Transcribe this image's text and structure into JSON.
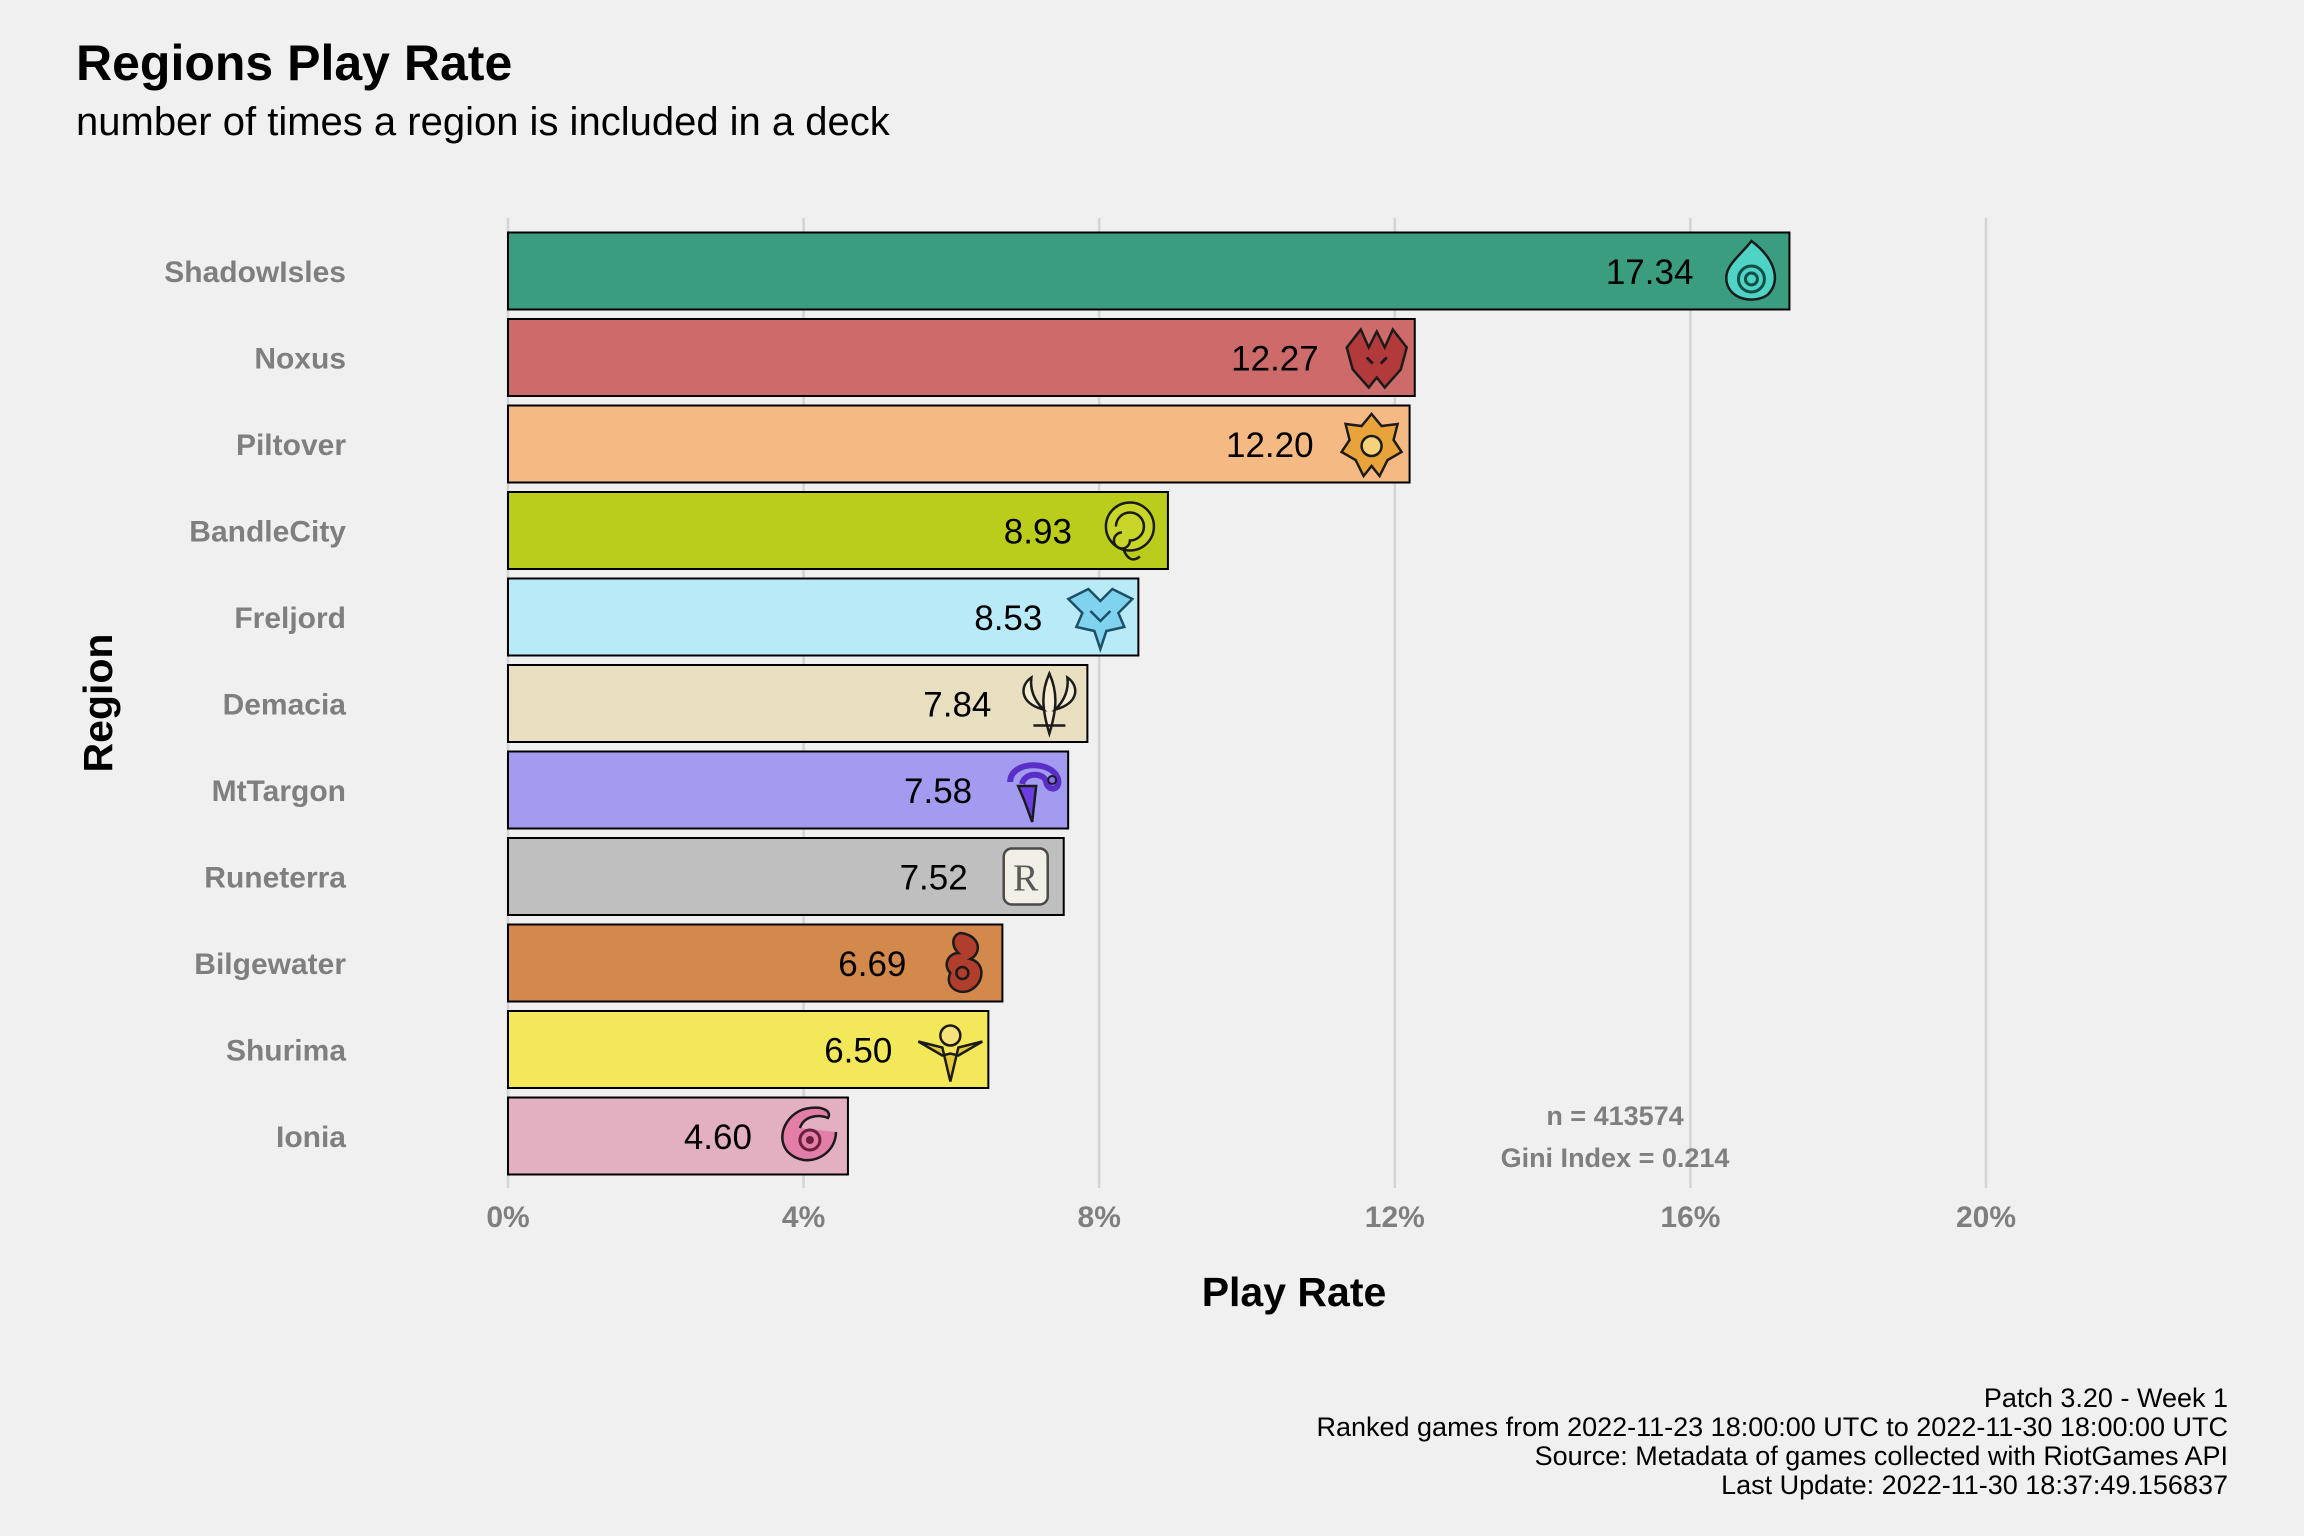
{
  "title": "Regions Play Rate",
  "subtitle": "number of times a region is included in a deck",
  "chart_data": {
    "type": "bar",
    "orientation": "horizontal",
    "xlabel": "Play Rate",
    "ylabel": "Region",
    "xlim": [
      0,
      20
    ],
    "x_ticks": [
      0,
      4,
      8,
      12,
      16,
      20
    ],
    "x_tick_labels": [
      "0%",
      "4%",
      "8%",
      "12%",
      "16%",
      "20%"
    ],
    "grid": "vertical major gridlines",
    "categories": [
      "ShadowIsles",
      "Noxus",
      "Piltover",
      "BandleCity",
      "Freljord",
      "Demacia",
      "MtTargon",
      "Runeterra",
      "Bilgewater",
      "Shurima",
      "Ionia"
    ],
    "values": [
      17.34,
      12.27,
      12.2,
      8.93,
      8.53,
      7.84,
      7.58,
      7.52,
      6.69,
      6.5,
      4.6
    ],
    "value_labels": [
      "17.34",
      "12.27",
      "12.20",
      "8.93",
      "8.53",
      "7.84",
      "7.58",
      "7.52",
      "6.69",
      "6.50",
      "4.60"
    ],
    "colors": [
      "#3a9d7f",
      "#cd6b6b",
      "#f5b983",
      "#bacd1a",
      "#b8eaf7",
      "#e8dfc1",
      "#a29bef",
      "#bfbfbf",
      "#d3884c",
      "#f3e85a",
      "#e2b0c1"
    ],
    "icons": [
      "shadowisles-icon",
      "noxus-icon",
      "piltover-icon",
      "bandlecity-icon",
      "freljord-icon",
      "demacia-icon",
      "mttargon-icon",
      "runeterra-icon",
      "bilgewater-icon",
      "shurima-icon",
      "ionia-icon"
    ],
    "annotations": [
      "n = 413574",
      "Gini Index = 0.214"
    ]
  },
  "caption": {
    "line1": "Patch 3.20 - Week 1",
    "line2": "Ranked games from 2022-11-23 18:00:00 UTC to 2022-11-30 18:00:00 UTC",
    "line3": "Source: Metadata of games collected with RiotGames API",
    "line4": "Last Update: 2022-11-30 18:37:49.156837"
  },
  "colors": {
    "background": "#f0f0f0",
    "grid": "#d4d4d4",
    "axis_text": "#7f7f7f",
    "bar_outline": "#000000"
  }
}
